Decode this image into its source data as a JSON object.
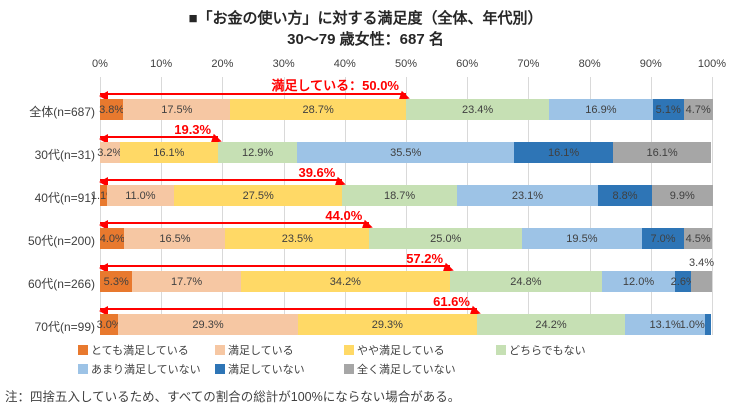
{
  "title": "■「お金の使い方」に対する満足度（全体、年代別）",
  "subtitle": "30～79 歳女性：687 名",
  "note": "注：四捨五入しているため、すべての割合の総計が100%にならない場合がある。",
  "chart_data": {
    "type": "bar",
    "orientation": "horizontal-stacked",
    "xlim": [
      0,
      100
    ],
    "grid": true,
    "grid_color": "#D9D9D9",
    "accent_color": "#FF0000",
    "x_ticks": [
      "0%",
      "10%",
      "20%",
      "30%",
      "40%",
      "50%",
      "60%",
      "70%",
      "80%",
      "90%",
      "100%"
    ],
    "categories": [
      "全体(n=687)",
      "30代(n=31)",
      "40代(n=91)",
      "50代(n=200)",
      "60代(n=266)",
      "70代(n=99)"
    ],
    "series": [
      {
        "name": "とても満足している",
        "color": "#E8792E",
        "values": [
          3.8,
          0,
          1.1,
          4.0,
          5.3,
          3.0
        ]
      },
      {
        "name": "満足している",
        "color": "#F6C7A3",
        "values": [
          17.5,
          3.2,
          11.0,
          16.5,
          17.7,
          29.3
        ]
      },
      {
        "name": "やや満足している",
        "color": "#FFD966",
        "values": [
          28.7,
          16.1,
          27.5,
          23.5,
          34.2,
          29.3
        ]
      },
      {
        "name": "どちらでもない",
        "color": "#C6E0B4",
        "values": [
          23.4,
          12.9,
          18.7,
          25.0,
          24.8,
          24.2
        ]
      },
      {
        "name": "あまり満足していない",
        "color": "#9DC3E6",
        "values": [
          16.9,
          35.5,
          23.1,
          19.5,
          12.0,
          13.1
        ]
      },
      {
        "name": "満足していない",
        "color": "#2E75B6",
        "values": [
          5.1,
          16.1,
          8.8,
          7.0,
          2.6,
          1.0
        ]
      },
      {
        "name": "全く満足していない",
        "color": "#A6A6A6",
        "values": [
          4.7,
          16.1,
          9.9,
          4.5,
          3.4,
          0
        ]
      }
    ],
    "annotations": [
      {
        "label": "満足している：50.0%",
        "value": 50.0
      },
      {
        "label": "19.3%",
        "value": 19.3
      },
      {
        "label": "39.6%",
        "value": 39.6
      },
      {
        "label": "44.0%",
        "value": 44.0
      },
      {
        "label": "57.2%",
        "value": 57.2
      },
      {
        "label": "61.6%",
        "value": 61.6
      }
    ],
    "label_overrides": [
      {
        "row": 4,
        "series": 6,
        "pos": "above"
      },
      {
        "row": 5,
        "series": 5,
        "pos": "left"
      }
    ],
    "legend_rows": [
      [
        0,
        1,
        2,
        3
      ],
      [
        4,
        5,
        6
      ]
    ],
    "legend_col_widths": [
      137,
      129,
      152,
      0
    ]
  }
}
